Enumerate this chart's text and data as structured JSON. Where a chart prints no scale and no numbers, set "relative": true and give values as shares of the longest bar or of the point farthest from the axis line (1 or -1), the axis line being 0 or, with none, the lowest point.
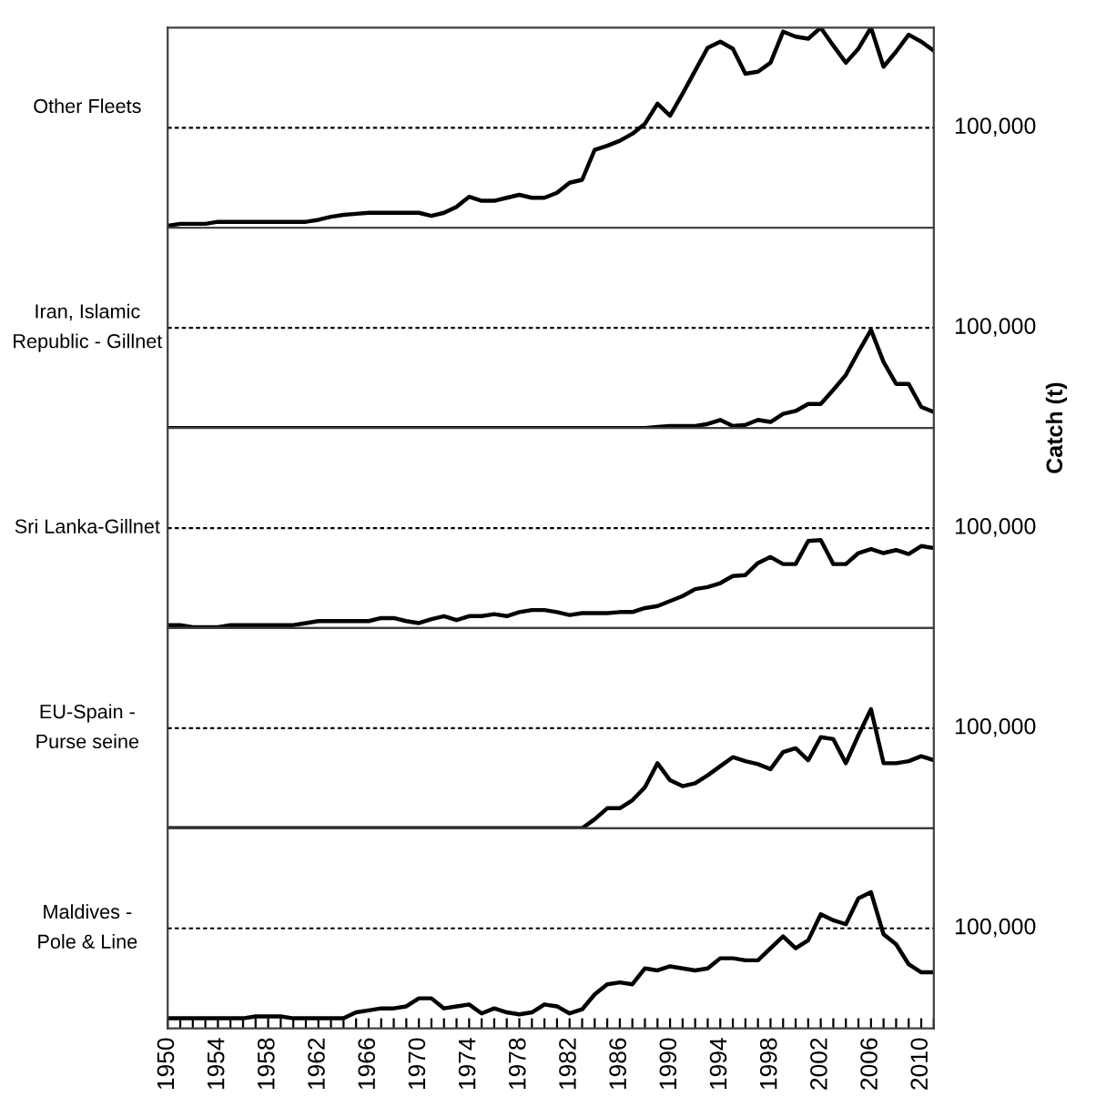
{
  "chart_data": [
    {
      "type": "line",
      "title": "Other Fleets",
      "relative": true,
      "xlim": [
        1950,
        2011
      ],
      "tick_labels": false,
      "ref_lines": [
        {
          "axis": "y",
          "value": 0.5,
          "color": "#000000",
          "line_style": "dashed"
        }
      ],
      "annotations": [
        "100,000"
      ],
      "x": [
        1950,
        1951,
        1952,
        1953,
        1954,
        1955,
        1956,
        1957,
        1958,
        1959,
        1960,
        1961,
        1962,
        1963,
        1964,
        1965,
        1966,
        1967,
        1968,
        1969,
        1970,
        1971,
        1972,
        1973,
        1974,
        1975,
        1976,
        1977,
        1978,
        1979,
        1980,
        1981,
        1982,
        1983,
        1984,
        1985,
        1986,
        1987,
        1988,
        1989,
        1990,
        1991,
        1992,
        1993,
        1994,
        1995,
        1996,
        1997,
        1998,
        1999,
        2000,
        2001,
        2002,
        2003,
        2004,
        2005,
        2006,
        2007,
        2008,
        2009,
        2010,
        2011
      ],
      "series": [
        {
          "color": "#000000",
          "values": [
            0.01,
            0.02,
            0.02,
            0.02,
            0.03,
            0.03,
            0.03,
            0.03,
            0.03,
            0.03,
            0.03,
            0.03,
            0.04,
            0.055,
            0.065,
            0.07,
            0.075,
            0.075,
            0.075,
            0.075,
            0.075,
            0.06,
            0.075,
            0.105,
            0.155,
            0.135,
            0.135,
            0.15,
            0.165,
            0.15,
            0.15,
            0.175,
            0.225,
            0.24,
            0.39,
            0.41,
            0.435,
            0.47,
            0.52,
            0.62,
            0.56,
            0.67,
            0.785,
            0.9,
            0.93,
            0.895,
            0.77,
            0.78,
            0.825,
            0.98,
            0.955,
            0.945,
            1,
            0.91,
            0.825,
            0.895,
            1,
            0.805,
            0.88,
            0.965,
            0.93,
            0.885
          ]
        }
      ]
    },
    {
      "type": "line",
      "title": "Iran, Islamic\nRepublic - Gillnet",
      "ylabel": "Catch (t)",
      "relative": true,
      "xlim": [
        1950,
        2011
      ],
      "tick_labels": false,
      "ref_lines": [
        {
          "axis": "y",
          "value": 1.02,
          "color": "#000000",
          "line_style": "dashed"
        }
      ],
      "annotations": [
        "100,000"
      ],
      "x": [
        1950,
        1951,
        1952,
        1953,
        1954,
        1955,
        1956,
        1957,
        1958,
        1959,
        1960,
        1961,
        1962,
        1963,
        1964,
        1965,
        1966,
        1967,
        1968,
        1969,
        1970,
        1971,
        1972,
        1973,
        1974,
        1975,
        1976,
        1977,
        1978,
        1979,
        1980,
        1981,
        1982,
        1983,
        1984,
        1985,
        1986,
        1987,
        1988,
        1989,
        1990,
        1991,
        1992,
        1993,
        1994,
        1995,
        1996,
        1997,
        1998,
        1999,
        2000,
        2001,
        2002,
        2003,
        2004,
        2005,
        2006,
        2007,
        2008,
        2009,
        2010,
        2011
      ],
      "series": [
        {
          "color": "#000000",
          "values": [
            0,
            0,
            0,
            0,
            0,
            0,
            0,
            0,
            0,
            0,
            0,
            0,
            0,
            0,
            0,
            0,
            0,
            0,
            0,
            0,
            0,
            0,
            0,
            0,
            0,
            0,
            0,
            0,
            0,
            0,
            0,
            0,
            0,
            0,
            0,
            0,
            0,
            0,
            0,
            0.01,
            0.02,
            0.02,
            0.02,
            0.041,
            0.082,
            0.02,
            0.031,
            0.082,
            0.061,
            0.143,
            0.173,
            0.245,
            0.245,
            0.388,
            0.541,
            0.776,
            1,
            0.673,
            0.449,
            0.449,
            0.214,
            0.163
          ]
        }
      ]
    },
    {
      "type": "line",
      "title": "Sri Lanka-Gillnet",
      "relative": true,
      "xlim": [
        1950,
        2011
      ],
      "tick_labels": false,
      "ref_lines": [
        {
          "axis": "y",
          "value": 1.136,
          "color": "#000000",
          "line_style": "dashed"
        }
      ],
      "annotations": [
        "100,000"
      ],
      "x": [
        1950,
        1951,
        1952,
        1953,
        1954,
        1955,
        1956,
        1957,
        1958,
        1959,
        1960,
        1961,
        1962,
        1963,
        1964,
        1965,
        1966,
        1967,
        1968,
        1969,
        1970,
        1971,
        1972,
        1973,
        1974,
        1975,
        1976,
        1977,
        1978,
        1979,
        1980,
        1981,
        1982,
        1983,
        1984,
        1985,
        1986,
        1987,
        1988,
        1989,
        1990,
        1991,
        1992,
        1993,
        1994,
        1995,
        1996,
        1997,
        1998,
        1999,
        2000,
        2001,
        2002,
        2003,
        2004,
        2005,
        2006,
        2007,
        2008,
        2009,
        2010,
        2011
      ],
      "series": [
        {
          "color": "#000000",
          "values": [
            0.034,
            0.034,
            0.011,
            0.011,
            0.011,
            0.034,
            0.034,
            0.034,
            0.034,
            0.034,
            0.034,
            0.057,
            0.08,
            0.08,
            0.08,
            0.08,
            0.08,
            0.114,
            0.114,
            0.08,
            0.057,
            0.102,
            0.136,
            0.091,
            0.136,
            0.136,
            0.159,
            0.136,
            0.182,
            0.205,
            0.205,
            0.182,
            0.148,
            0.17,
            0.17,
            0.17,
            0.182,
            0.182,
            0.227,
            0.25,
            0.307,
            0.364,
            0.443,
            0.466,
            0.511,
            0.591,
            0.602,
            0.739,
            0.807,
            0.727,
            0.727,
            0.989,
            1,
            0.727,
            0.727,
            0.852,
            0.898,
            0.852,
            0.886,
            0.841,
            0.932,
            0.909
          ]
        }
      ]
    },
    {
      "type": "line",
      "title": "EU-Spain -\nPurse seine",
      "relative": true,
      "xlim": [
        1950,
        2011
      ],
      "tick_labels": false,
      "ref_lines": [
        {
          "axis": "y",
          "value": 0.84,
          "color": "#000000",
          "line_style": "dashed"
        }
      ],
      "annotations": [
        "100,000"
      ],
      "x": [
        1950,
        1951,
        1952,
        1953,
        1954,
        1955,
        1956,
        1957,
        1958,
        1959,
        1960,
        1961,
        1962,
        1963,
        1964,
        1965,
        1966,
        1967,
        1968,
        1969,
        1970,
        1971,
        1972,
        1973,
        1974,
        1975,
        1976,
        1977,
        1978,
        1979,
        1980,
        1981,
        1982,
        1983,
        1984,
        1985,
        1986,
        1987,
        1988,
        1989,
        1990,
        1991,
        1992,
        1993,
        1994,
        1995,
        1996,
        1997,
        1998,
        1999,
        2000,
        2001,
        2002,
        2003,
        2004,
        2005,
        2006,
        2007,
        2008,
        2009,
        2010,
        2011
      ],
      "series": [
        {
          "color": "#000000",
          "values": [
            0,
            0,
            0,
            0,
            0,
            0,
            0,
            0,
            0,
            0,
            0,
            0,
            0,
            0,
            0,
            0,
            0,
            0,
            0,
            0,
            0,
            0,
            0,
            0,
            0,
            0,
            0,
            0,
            0,
            0,
            0,
            0,
            0,
            0,
            0.076,
            0.168,
            0.168,
            0.235,
            0.345,
            0.546,
            0.403,
            0.353,
            0.378,
            0.445,
            0.521,
            0.597,
            0.563,
            0.538,
            0.496,
            0.639,
            0.672,
            0.571,
            0.765,
            0.748,
            0.546,
            0.782,
            1,
            0.546,
            0.546,
            0.563,
            0.605,
            0.571
          ]
        }
      ]
    },
    {
      "type": "line",
      "title": "Maldives -\nPole & Line",
      "relative": true,
      "xlim": [
        1950,
        2011
      ],
      "tick_labels": "x",
      "ref_lines": [
        {
          "axis": "y",
          "value": 0.735,
          "color": "#000000",
          "line_style": "dashed"
        }
      ],
      "annotations": [
        "100,000"
      ],
      "xticks": [
        1950,
        {
          "value": 1951,
          "label": null
        },
        {
          "value": 1952,
          "label": null
        },
        {
          "value": 1953,
          "label": null
        },
        1954,
        {
          "value": 1955,
          "label": null
        },
        {
          "value": 1956,
          "label": null
        },
        {
          "value": 1957,
          "label": null
        },
        1958,
        {
          "value": 1959,
          "label": null
        },
        {
          "value": 1960,
          "label": null
        },
        {
          "value": 1961,
          "label": null
        },
        1962,
        {
          "value": 1963,
          "label": null
        },
        {
          "value": 1964,
          "label": null
        },
        {
          "value": 1965,
          "label": null
        },
        1966,
        {
          "value": 1967,
          "label": null
        },
        {
          "value": 1968,
          "label": null
        },
        {
          "value": 1969,
          "label": null
        },
        1970,
        {
          "value": 1971,
          "label": null
        },
        {
          "value": 1972,
          "label": null
        },
        {
          "value": 1973,
          "label": null
        },
        1974,
        {
          "value": 1975,
          "label": null
        },
        {
          "value": 1976,
          "label": null
        },
        {
          "value": 1977,
          "label": null
        },
        1978,
        {
          "value": 1979,
          "label": null
        },
        {
          "value": 1980,
          "label": null
        },
        {
          "value": 1981,
          "label": null
        },
        1982,
        {
          "value": 1983,
          "label": null
        },
        {
          "value": 1984,
          "label": null
        },
        {
          "value": 1985,
          "label": null
        },
        1986,
        {
          "value": 1987,
          "label": null
        },
        {
          "value": 1988,
          "label": null
        },
        {
          "value": 1989,
          "label": null
        },
        1990,
        {
          "value": 1991,
          "label": null
        },
        {
          "value": 1992,
          "label": null
        },
        {
          "value": 1993,
          "label": null
        },
        1994,
        {
          "value": 1995,
          "label": null
        },
        {
          "value": 1996,
          "label": null
        },
        {
          "value": 1997,
          "label": null
        },
        1998,
        {
          "value": 1999,
          "label": null
        },
        {
          "value": 2000,
          "label": null
        },
        {
          "value": 2001,
          "label": null
        },
        2002,
        {
          "value": 2003,
          "label": null
        },
        {
          "value": 2004,
          "label": null
        },
        {
          "value": 2005,
          "label": null
        },
        2006,
        {
          "value": 2007,
          "label": null
        },
        {
          "value": 2008,
          "label": null
        },
        {
          "value": 2009,
          "label": null
        },
        2010,
        {
          "value": 2011,
          "label": null
        }
      ],
      "x": [
        1950,
        1951,
        1952,
        1953,
        1954,
        1955,
        1956,
        1957,
        1958,
        1959,
        1960,
        1961,
        1962,
        1963,
        1964,
        1965,
        1966,
        1967,
        1968,
        1969,
        1970,
        1971,
        1972,
        1973,
        1974,
        1975,
        1976,
        1977,
        1978,
        1979,
        1980,
        1981,
        1982,
        1983,
        1984,
        1985,
        1986,
        1987,
        1988,
        1989,
        1990,
        1991,
        1992,
        1993,
        1994,
        1995,
        1996,
        1997,
        1998,
        1999,
        2000,
        2001,
        2002,
        2003,
        2004,
        2005,
        2006,
        2007,
        2008,
        2009,
        2010,
        2011
      ],
      "series": [
        {
          "color": "#000000",
          "values": [
            0.074,
            0.074,
            0.074,
            0.074,
            0.074,
            0.074,
            0.074,
            0.088,
            0.088,
            0.088,
            0.074,
            0.074,
            0.074,
            0.074,
            0.074,
            0.118,
            0.132,
            0.147,
            0.147,
            0.162,
            0.221,
            0.221,
            0.147,
            0.162,
            0.176,
            0.11,
            0.147,
            0.118,
            0.103,
            0.118,
            0.176,
            0.162,
            0.11,
            0.14,
            0.25,
            0.324,
            0.338,
            0.324,
            0.441,
            0.426,
            0.456,
            0.441,
            0.426,
            0.441,
            0.515,
            0.515,
            0.5,
            0.5,
            0.588,
            0.676,
            0.588,
            0.647,
            0.838,
            0.794,
            0.765,
            0.956,
            1,
            0.691,
            0.618,
            0.471,
            0.412,
            0.412
          ]
        }
      ]
    }
  ]
}
